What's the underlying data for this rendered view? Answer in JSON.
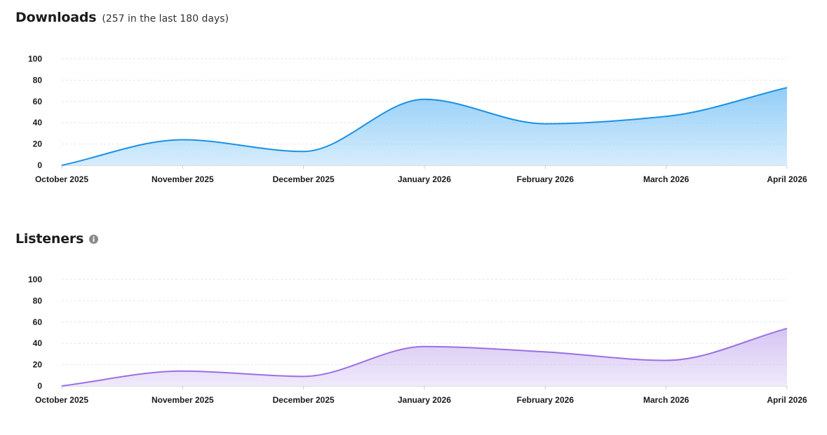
{
  "downloads": {
    "title": "Downloads",
    "subtitle": "(257 in the last 180 days)"
  },
  "listeners": {
    "title": "Listeners",
    "info_icon": "info-icon"
  },
  "chart_data": [
    {
      "type": "area",
      "title": "Downloads",
      "subtitle": "(257 in the last 180 days)",
      "xlabel": "",
      "ylabel": "",
      "x": [
        "October 2025",
        "November 2025",
        "December 2025",
        "January 2026",
        "February 2026",
        "March 2026",
        "April 2026"
      ],
      "ylim": [
        0,
        100
      ],
      "yticks": [
        0,
        20,
        40,
        60,
        80,
        100
      ],
      "grid": true,
      "series": [
        {
          "values": [
            0,
            24,
            13,
            62,
            39,
            46,
            73
          ],
          "color": "#1a91e6",
          "fill": "#8ccbf7"
        }
      ]
    },
    {
      "type": "area",
      "title": "Listeners",
      "xlabel": "",
      "ylabel": "",
      "x": [
        "October 2025",
        "November 2025",
        "December 2025",
        "January 2026",
        "February 2026",
        "March 2026",
        "April 2026"
      ],
      "ylim": [
        0,
        100
      ],
      "yticks": [
        0,
        20,
        40,
        60,
        80,
        100
      ],
      "grid": true,
      "series": [
        {
          "values": [
            0,
            14,
            9,
            37,
            32,
            24,
            54
          ],
          "color": "#9b6fe3",
          "fill": "#d3c2f3"
        }
      ]
    }
  ]
}
